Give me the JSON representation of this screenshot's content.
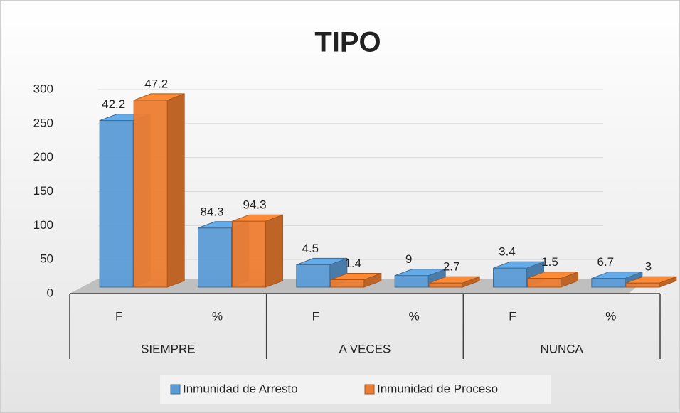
{
  "chart_data": {
    "type": "bar3d",
    "title": "TIPO",
    "categories": [
      "F",
      "%",
      "F",
      "%",
      "F",
      "%"
    ],
    "groups": [
      "SIEMPRE",
      "A VECES",
      "NUNCA"
    ],
    "series": [
      {
        "name": "Inmunidad de Arresto",
        "color": "#5b9bd5",
        "values": [
          245,
          87,
          33,
          17,
          28,
          13
        ],
        "labels": [
          "42.2",
          "84.3",
          "4.5",
          "9",
          "3.4",
          "6.7"
        ]
      },
      {
        "name": "Inmunidad de Proceso",
        "color": "#ed7d31",
        "values": [
          275,
          97,
          11,
          6,
          13,
          6
        ],
        "labels": [
          "47.2",
          "94.3",
          "1.4",
          "2.7",
          "1.5",
          "3"
        ]
      }
    ],
    "ylim": [
      0,
      300
    ],
    "yticks": [
      0,
      50,
      100,
      150,
      200,
      250,
      300
    ],
    "grid": true,
    "legend": "bottom"
  }
}
